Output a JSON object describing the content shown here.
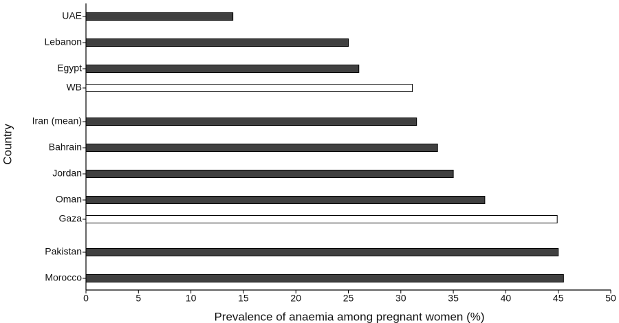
{
  "chart_data": {
    "type": "barh",
    "categories": [
      "UAE",
      "Lebanon",
      "Egypt",
      "WB",
      "Iran (mean)",
      "Bahrain",
      "Jordan",
      "Oman",
      "Gaza",
      "Pakistan",
      "Morocco"
    ],
    "values": [
      14,
      25,
      26,
      31.1,
      31.5,
      33.5,
      35,
      38,
      44.9,
      45,
      45.5
    ],
    "colors": [
      "#404040",
      "#404040",
      "#404040",
      "#ffffff",
      "#404040",
      "#404040",
      "#404040",
      "#404040",
      "#ffffff",
      "#404040",
      "#404040"
    ],
    "xlim": [
      0,
      50
    ],
    "xticks": [
      0,
      5,
      10,
      15,
      20,
      25,
      30,
      35,
      40,
      45,
      50
    ],
    "x_label": "Prevalence of anaemia among pregnant women (%)",
    "y_label": "Country"
  }
}
